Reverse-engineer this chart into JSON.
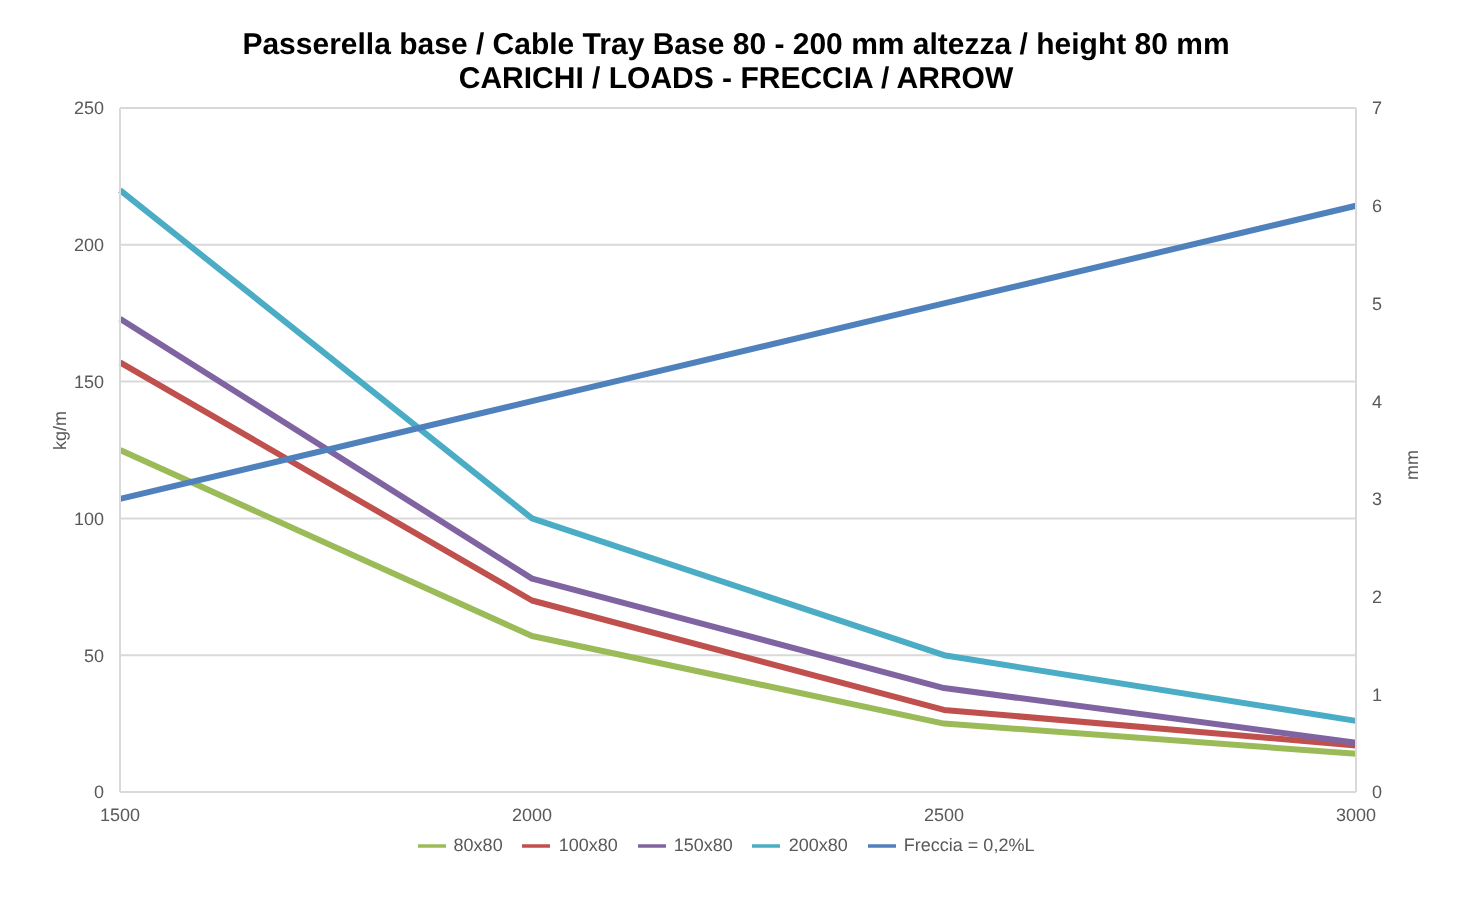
{
  "chart_data": {
    "type": "line",
    "title": "Passerella base / Cable Tray Base 80 - 200 mm altezza / height 80 mm",
    "subtitle": "CARICHI / LOADS - FRECCIA / ARROW",
    "ylabel": "kg/m",
    "y2label": "mm",
    "categories": [
      "1500",
      "2000",
      "2500",
      "3000"
    ],
    "series": [
      {
        "name": "80x80",
        "color": "#9bbb59",
        "values": [
          125,
          57,
          25,
          14
        ]
      },
      {
        "name": "100x80",
        "color": "#c0504d",
        "values": [
          157,
          70,
          30,
          17
        ]
      },
      {
        "name": "150x80",
        "color": "#8064a2",
        "values": [
          173,
          78,
          38,
          18
        ]
      },
      {
        "name": "200x80",
        "color": "#4bacc6",
        "values": [
          220,
          100,
          50,
          26
        ]
      },
      {
        "name": "Freccia = 0,2%L",
        "color": "#4f81bd",
        "values": [
          3,
          4,
          5,
          6
        ],
        "axis": "y2"
      }
    ],
    "ylim": [
      0,
      250
    ],
    "yticks": [
      0,
      50,
      100,
      150,
      200,
      250
    ],
    "y2lim": [
      0,
      7
    ],
    "y2ticks": [
      0,
      1,
      2,
      3,
      4,
      5,
      6,
      7
    ],
    "grid": "y",
    "legend": "bottom",
    "marker": "none"
  }
}
